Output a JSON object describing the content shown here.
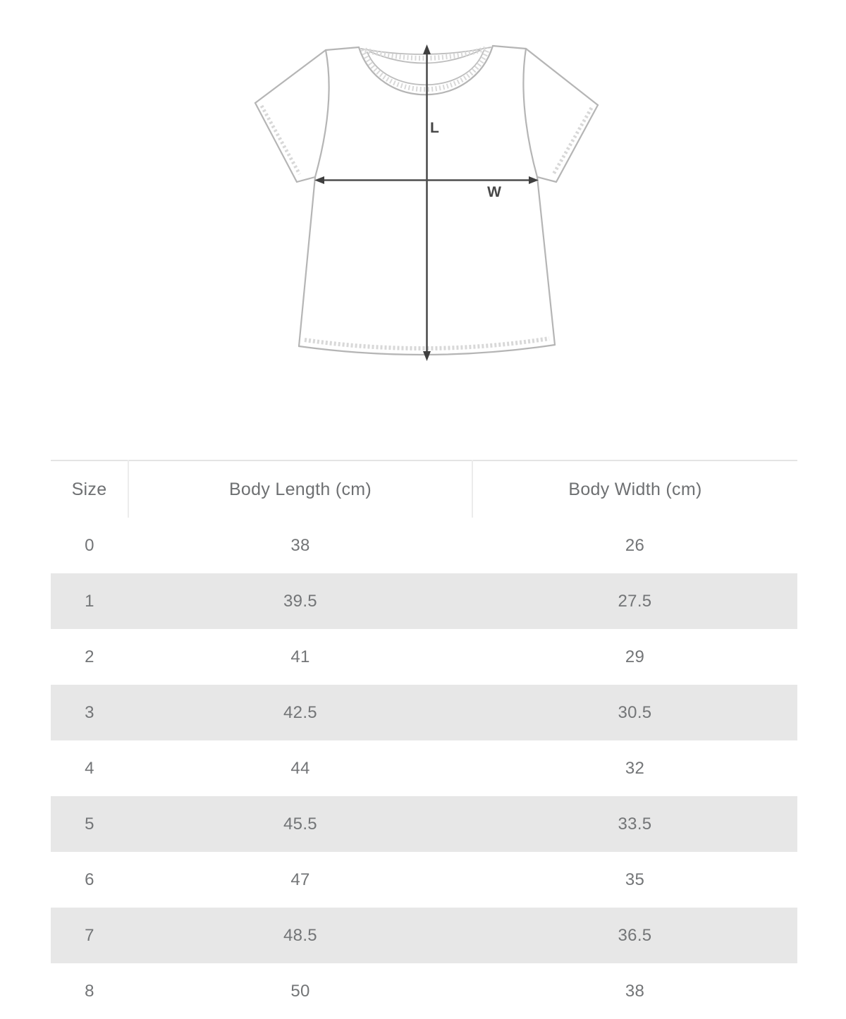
{
  "diagram": {
    "name": "t-shirt measurement diagram",
    "length_label": "L",
    "width_label": "W"
  },
  "size_chart": {
    "columns": [
      "Size",
      "Body Length (cm)",
      "Body Width (cm)"
    ],
    "rows": [
      [
        "0",
        "38",
        "26"
      ],
      [
        "1",
        "39.5",
        "27.5"
      ],
      [
        "2",
        "41",
        "29"
      ],
      [
        "3",
        "42.5",
        "30.5"
      ],
      [
        "4",
        "44",
        "32"
      ],
      [
        "5",
        "45.5",
        "33.5"
      ],
      [
        "6",
        "47",
        "35"
      ],
      [
        "7",
        "48.5",
        "36.5"
      ],
      [
        "8",
        "50",
        "38"
      ]
    ]
  },
  "colors": {
    "row_alt_bg": "#e7e7e7",
    "table_border": "#e4e4e4",
    "header_separator": "#ececec",
    "text": "#737577",
    "shirt_outline": "#b5b5b5",
    "stitch": "#d2d2d2",
    "arrow": "#4e4e4e"
  }
}
